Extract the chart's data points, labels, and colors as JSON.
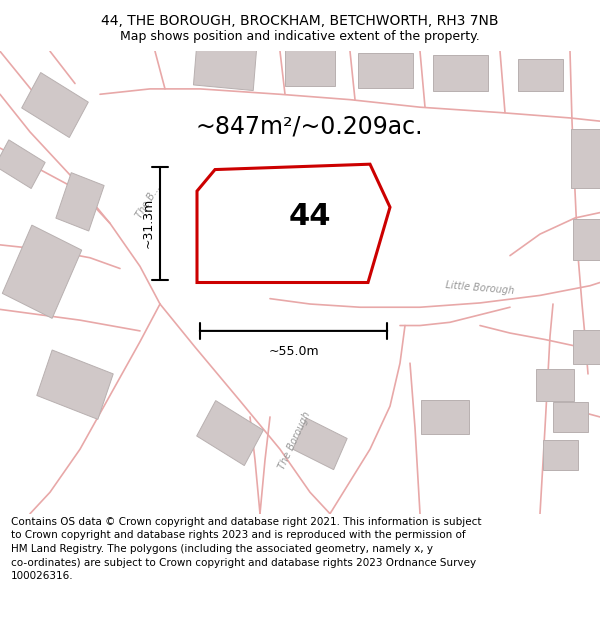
{
  "title_line1": "44, THE BOROUGH, BROCKHAM, BETCHWORTH, RH3 7NB",
  "title_line2": "Map shows position and indicative extent of the property.",
  "footer_text": "Contains OS data © Crown copyright and database right 2021. This information is subject to Crown copyright and database rights 2023 and is reproduced with the permission of HM Land Registry. The polygons (including the associated geometry, namely x, y co-ordinates) are subject to Crown copyright and database rights 2023 Ordnance Survey 100026316.",
  "map_bg": "#f7f3f3",
  "road_color": "#e8a8a8",
  "building_fill": "#d0c8c8",
  "building_edge": "#b8b0b0",
  "plot_fill": "#ffffff",
  "plot_edge": "#cc0000",
  "plot_label": "44",
  "area_text": "~847m²/~0.209ac.",
  "width_text": "~55.0m",
  "height_text": "~31.3m",
  "road_label_color": "#999999",
  "road_label_upper": "The B...",
  "road_label_lower": "The Borough",
  "road_label_little": "Little Borough"
}
